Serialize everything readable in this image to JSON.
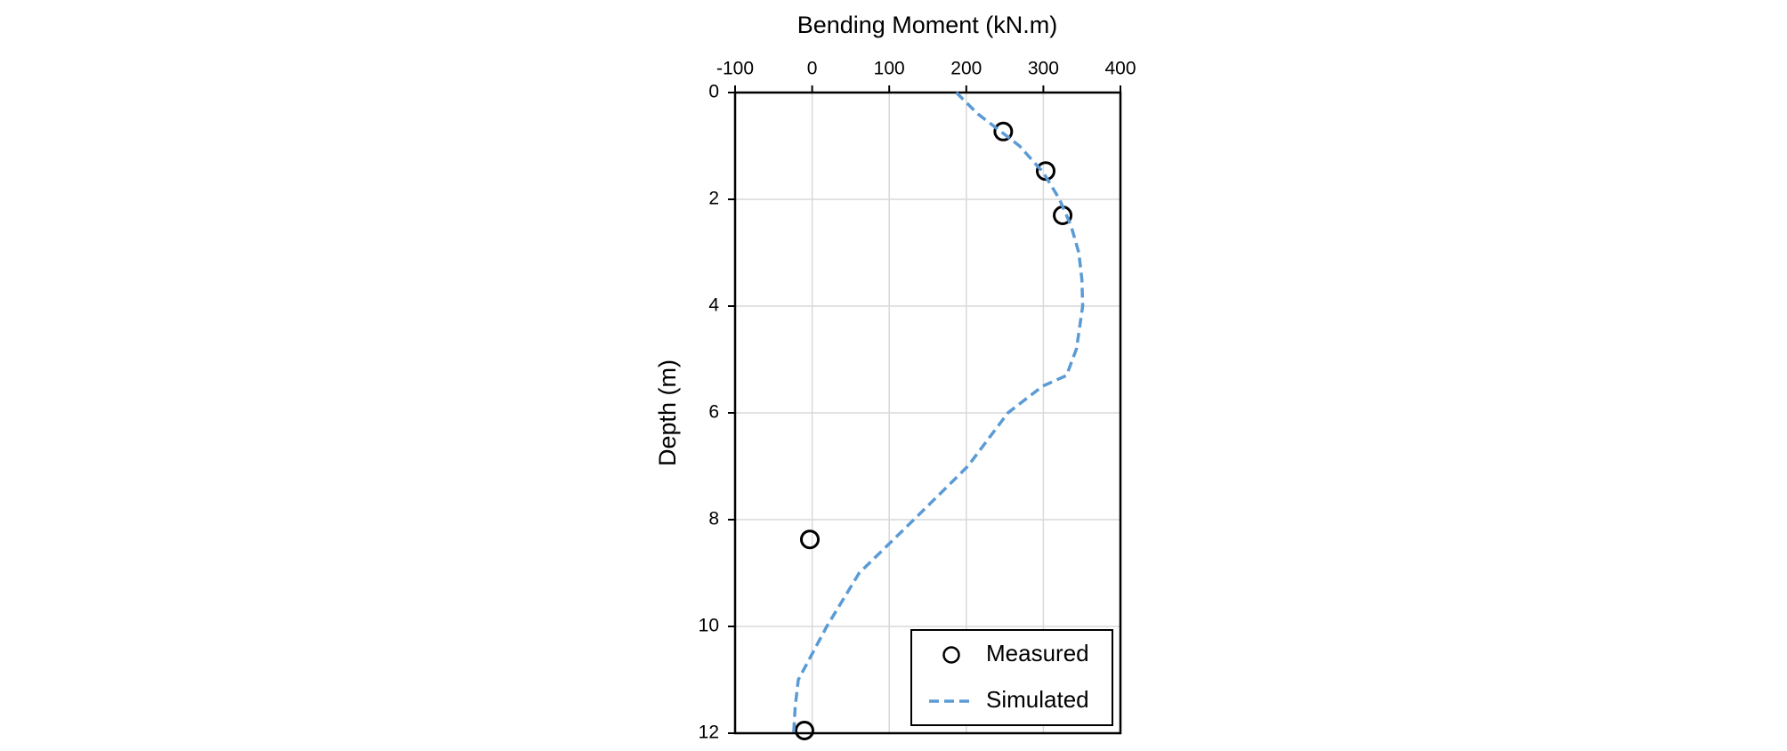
{
  "chart_data": {
    "type": "scatter",
    "title": "Bending Moment  (kN.m)",
    "y_label": "Depth  (m)",
    "xlim": [
      -100,
      400
    ],
    "xticks": [
      -100,
      0,
      100,
      200,
      300,
      400
    ],
    "ylim": [
      0,
      12
    ],
    "yticks": [
      0,
      2,
      4,
      6,
      8,
      10,
      12
    ],
    "y_inverted": true,
    "x_axis_position": "top",
    "grid": true,
    "legend": "lower right",
    "series": [
      {
        "name": "Measured",
        "color": "#000000",
        "marker": "circle",
        "x": [
          248,
          303,
          325,
          -3,
          -10
        ],
        "values": [
          0.73,
          1.47,
          2.3,
          8.37,
          11.95
        ]
      },
      {
        "name": "Simulated",
        "color": "#5b9bd5",
        "line": "dashed",
        "x": [
          187,
          215,
          269,
          300,
          321,
          336,
          346,
          350,
          351,
          343,
          330,
          299,
          254,
          202,
          132,
          61,
          19,
          -18,
          -22,
          -24
        ],
        "values": [
          0,
          0.4,
          1,
          1.5,
          2,
          2.5,
          3,
          3.5,
          4,
          4.8,
          5.3,
          5.5,
          6,
          7,
          8,
          9,
          10,
          11,
          11.5,
          12
        ]
      }
    ]
  }
}
